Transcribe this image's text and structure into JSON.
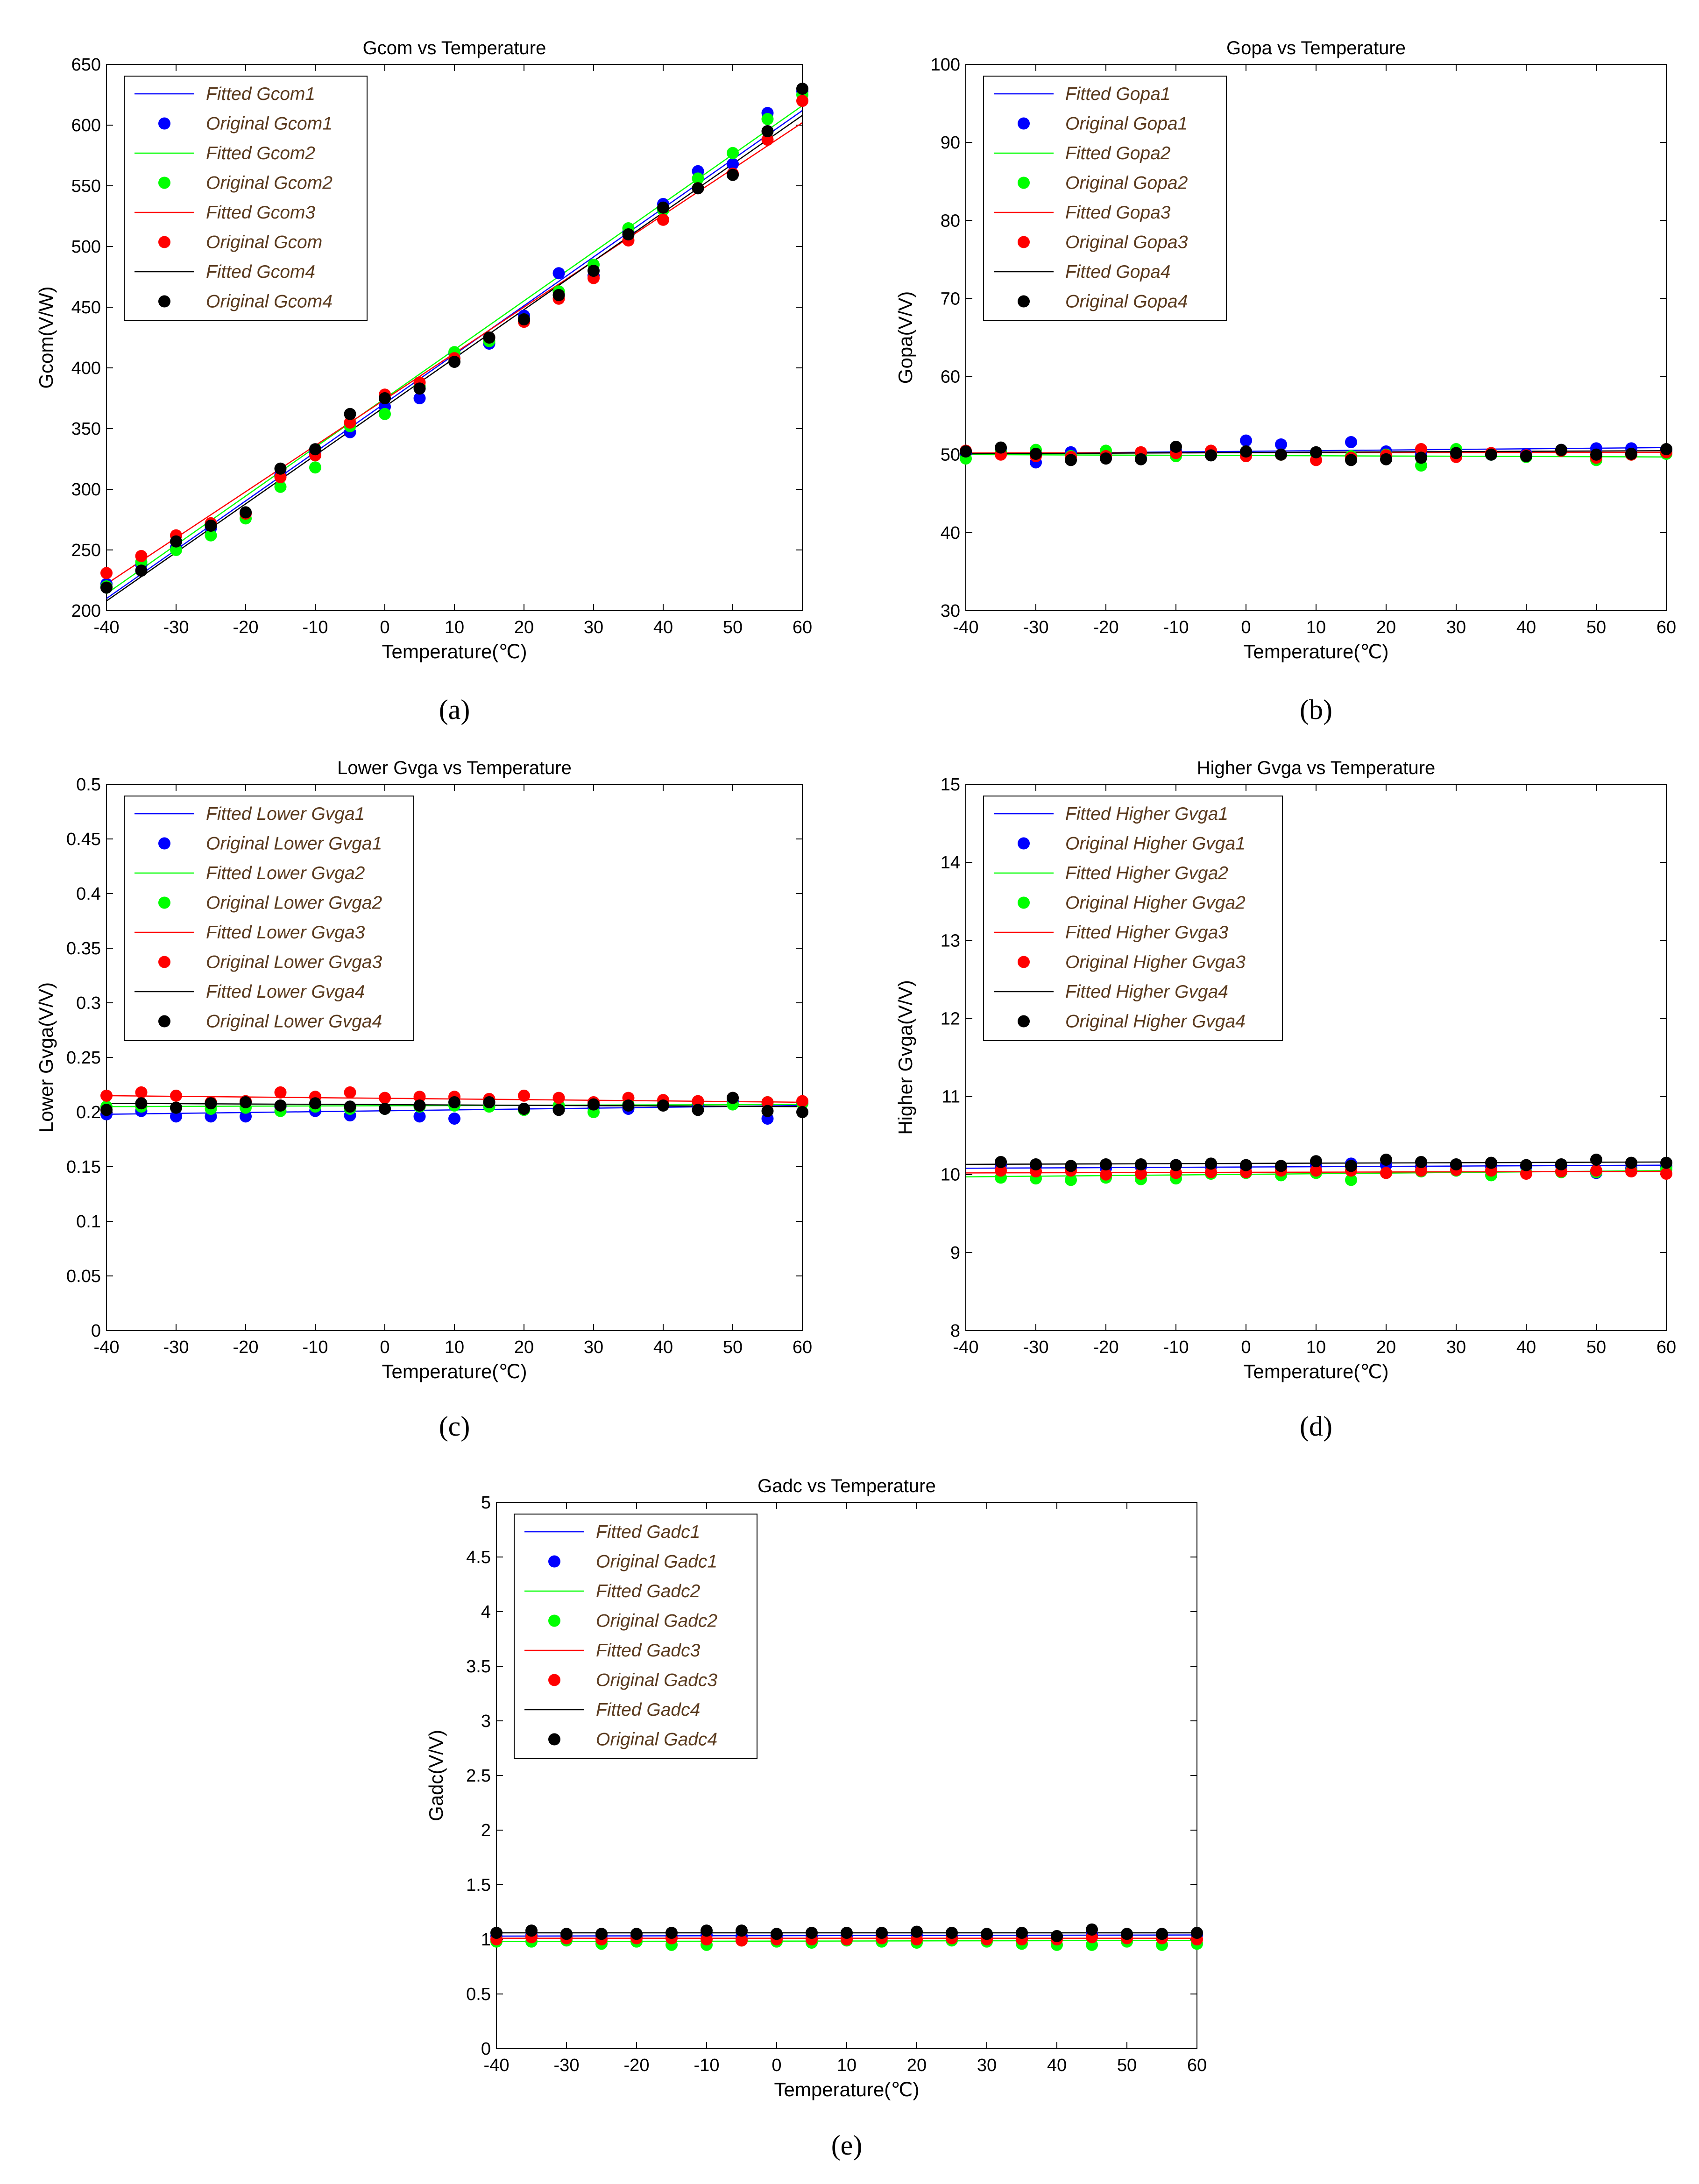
{
  "figure": {
    "colors": {
      "series1": "#0000ff",
      "series2": "#00ff00",
      "series3": "#ff0000",
      "series4": "#000000",
      "legend_text": "#5a3a1e"
    },
    "x": [
      -40,
      -35,
      -30,
      -25,
      -20,
      -15,
      -10,
      -5,
      0,
      5,
      10,
      15,
      20,
      25,
      30,
      35,
      40,
      45,
      50,
      55,
      60
    ]
  },
  "chart_data": [
    {
      "id": "a",
      "caption": "(a)",
      "type": "scatter",
      "title": "Gcom vs Temperature",
      "xlabel": "Temperature(℃)",
      "ylabel": "Gcom(V/W)",
      "xlim": [
        -40,
        60
      ],
      "ylim": [
        200,
        650
      ],
      "xticks": [
        -40,
        -30,
        -20,
        -10,
        0,
        10,
        20,
        30,
        40,
        50,
        60
      ],
      "yticks": [
        200,
        250,
        300,
        350,
        400,
        450,
        500,
        550,
        600,
        650
      ],
      "legend_position": "top-left",
      "legend": [
        "Fitted Gcom1",
        "Original Gcom1",
        "Fitted Gcom2",
        "Original Gcom2",
        "Fitted Gcom3",
        "Original Gcom",
        "Fitted Gcom4",
        "Original Gcom4"
      ],
      "series": [
        {
          "color": "#0000ff",
          "fit": [
            210,
            612
          ],
          "values": [
            222,
            238,
            252,
            268,
            280,
            312,
            330,
            347,
            368,
            375,
            412,
            420,
            443,
            478,
            476,
            512,
            535,
            562,
            568,
            610,
            628
          ]
        },
        {
          "color": "#00ff00",
          "fit": [
            214,
            616
          ],
          "values": [
            220,
            240,
            250,
            262,
            276,
            302,
            318,
            352,
            362,
            385,
            413,
            422,
            440,
            463,
            485,
            515,
            530,
            556,
            577,
            605,
            625
          ]
        },
        {
          "color": "#ff0000",
          "fit": [
            222,
            602
          ],
          "values": [
            231,
            245,
            262,
            272,
            280,
            310,
            328,
            355,
            378,
            388,
            408,
            425,
            438,
            457,
            474,
            505,
            522,
            548,
            560,
            588,
            620
          ]
        },
        {
          "color": "#000000",
          "fit": [
            208,
            608
          ],
          "values": [
            219,
            233,
            257,
            270,
            281,
            317,
            333,
            362,
            375,
            383,
            405,
            425,
            440,
            460,
            480,
            510,
            532,
            548,
            559,
            595,
            630
          ]
        }
      ]
    },
    {
      "id": "b",
      "caption": "(b)",
      "type": "scatter",
      "title": "Gopa vs Temperature",
      "xlabel": "Temperature(℃)",
      "ylabel": "Gopa(V/V)",
      "xlim": [
        -40,
        60
      ],
      "ylim": [
        30,
        100
      ],
      "xticks": [
        -40,
        -30,
        -20,
        -10,
        0,
        10,
        20,
        30,
        40,
        50,
        60
      ],
      "yticks": [
        30,
        40,
        50,
        60,
        70,
        80,
        90,
        100
      ],
      "legend_position": "top-left",
      "legend": [
        "Fitted Gopa1",
        "Original Gopa1",
        "Fitted Gopa2",
        "Original Gopa2",
        "Fitted Gopa3",
        "Original Gopa3",
        "Fitted Gopa4",
        "Original Gopa4"
      ],
      "series": [
        {
          "color": "#0000ff",
          "fit": [
            50.1,
            50.9
          ],
          "values": [
            50.2,
            50.8,
            49.0,
            50.3,
            50.0,
            49.6,
            50.5,
            50.2,
            51.8,
            51.3,
            50.2,
            51.6,
            50.4,
            50.0,
            50.2,
            50.0,
            50.1,
            50.6,
            50.8,
            50.8,
            50.6
          ]
        },
        {
          "color": "#00ff00",
          "fit": [
            50.0,
            49.7
          ],
          "values": [
            49.5,
            50.4,
            50.6,
            49.8,
            50.5,
            50.0,
            49.8,
            50.2,
            50.1,
            50.0,
            50.2,
            49.8,
            50.0,
            48.6,
            50.7,
            50.0,
            49.7,
            50.5,
            49.3,
            50.0,
            50.1
          ]
        },
        {
          "color": "#ff0000",
          "fit": [
            50.2,
            50.3
          ],
          "values": [
            50.5,
            50.0,
            49.8,
            49.7,
            49.8,
            50.3,
            50.2,
            50.5,
            49.8,
            50.0,
            49.3,
            49.6,
            49.9,
            50.7,
            49.7,
            50.2,
            49.9,
            50.5,
            49.6,
            50.0,
            50.3
          ]
        },
        {
          "color": "#000000",
          "fit": [
            50.1,
            50.5
          ],
          "values": [
            50.4,
            50.9,
            50.1,
            49.3,
            49.5,
            49.4,
            51.0,
            49.9,
            50.4,
            50.0,
            50.3,
            49.3,
            49.4,
            49.6,
            50.2,
            50.0,
            49.8,
            50.6,
            50.0,
            50.1,
            50.7
          ]
        }
      ]
    },
    {
      "id": "c",
      "caption": "(c)",
      "type": "scatter",
      "title": "Lower Gvga vs Temperature",
      "xlabel": "Temperature(℃)",
      "ylabel": "Lower Gvga(V/V)",
      "xlim": [
        -40,
        60
      ],
      "ylim": [
        0,
        0.5
      ],
      "xticks": [
        -40,
        -30,
        -20,
        -10,
        0,
        10,
        20,
        30,
        40,
        50,
        60
      ],
      "yticks": [
        0,
        0.05,
        0.1,
        0.15,
        0.2,
        0.25,
        0.3,
        0.35,
        0.4,
        0.45,
        0.5
      ],
      "legend_position": "top-left",
      "legend": [
        "Fitted Lower Gvga1",
        "Original Lower Gvga1",
        "Fitted Lower Gvga2",
        "Original Lower Gvga2",
        "Fitted Lower Gvga3",
        "Original Lower Gvga3",
        "Fitted Lower Gvga4",
        "Original Lower Gvga4"
      ],
      "series": [
        {
          "color": "#0000ff",
          "fit": [
            0.198,
            0.206
          ],
          "values": [
            0.198,
            0.201,
            0.196,
            0.196,
            0.196,
            0.205,
            0.201,
            0.197,
            0.203,
            0.196,
            0.194,
            0.209,
            0.203,
            0.203,
            0.204,
            0.203,
            0.208,
            0.207,
            0.21,
            0.194,
            0.208
          ]
        },
        {
          "color": "#00ff00",
          "fit": [
            0.205,
            0.207
          ],
          "values": [
            0.205,
            0.205,
            0.204,
            0.203,
            0.204,
            0.201,
            0.205,
            0.203,
            0.203,
            0.205,
            0.206,
            0.205,
            0.202,
            0.206,
            0.2,
            0.207,
            0.208,
            0.209,
            0.207,
            0.209,
            0.208
          ]
        },
        {
          "color": "#ff0000",
          "fit": [
            0.215,
            0.209
          ],
          "values": [
            0.215,
            0.218,
            0.215,
            0.209,
            0.21,
            0.218,
            0.214,
            0.218,
            0.213,
            0.214,
            0.214,
            0.212,
            0.215,
            0.213,
            0.209,
            0.213,
            0.211,
            0.21,
            0.213,
            0.209,
            0.21
          ]
        },
        {
          "color": "#000000",
          "fit": [
            0.208,
            0.205
          ],
          "values": [
            0.202,
            0.208,
            0.204,
            0.208,
            0.209,
            0.206,
            0.208,
            0.205,
            0.203,
            0.206,
            0.209,
            0.209,
            0.203,
            0.202,
            0.207,
            0.206,
            0.206,
            0.202,
            0.213,
            0.201,
            0.2
          ]
        }
      ]
    },
    {
      "id": "d",
      "caption": "(d)",
      "type": "scatter",
      "title": "Higher Gvga vs Temperature",
      "xlabel": "Temperature(℃)",
      "ylabel": "Higher Gvga(V/V)",
      "xlim": [
        -40,
        60
      ],
      "ylim": [
        8,
        15
      ],
      "xticks": [
        -40,
        -30,
        -20,
        -10,
        0,
        10,
        20,
        30,
        40,
        50,
        60
      ],
      "yticks": [
        8,
        9,
        10,
        11,
        12,
        13,
        14,
        15
      ],
      "legend_position": "top-left",
      "legend": [
        "Fitted Higher Gvga1",
        "Original Higher Gvga1",
        "Fitted Higher Gvga2",
        "Original Higher Gvga2",
        "Fitted Higher Gvga3",
        "Original Higher Gvga3",
        "Fitted Higher Gvga4",
        "Original Higher Gvga4"
      ],
      "series": [
        {
          "color": "#0000ff",
          "fit": [
            10.08,
            10.12
          ],
          "values": [
            null,
            10.12,
            10.1,
            10.09,
            10.08,
            10.1,
            10.12,
            10.1,
            10.1,
            10.08,
            10.12,
            10.14,
            10.12,
            10.1,
            10.11,
            10.1,
            10.1,
            10.11,
            10.02,
            10.08,
            10.1
          ]
        },
        {
          "color": "#00ff00",
          "fit": [
            9.97,
            10.05
          ],
          "values": [
            null,
            9.96,
            9.95,
            9.93,
            9.96,
            9.94,
            9.95,
            10.01,
            10.02,
            9.99,
            10.02,
            9.93,
            10.02,
            10.04,
            10.05,
            9.99,
            10.02,
            10.03,
            10.03,
            10.05,
            10.07
          ]
        },
        {
          "color": "#ff0000",
          "fit": [
            10.02,
            10.04
          ],
          "values": [
            null,
            10.05,
            10.04,
            10.05,
            10.0,
            10.01,
            10.02,
            10.03,
            10.03,
            10.05,
            10.05,
            10.05,
            10.02,
            10.05,
            10.06,
            10.05,
            10.01,
            10.04,
            10.05,
            10.04,
            10.01
          ]
        },
        {
          "color": "#000000",
          "fit": [
            10.13,
            10.16
          ],
          "values": [
            null,
            10.16,
            10.13,
            10.11,
            10.13,
            10.13,
            10.12,
            10.14,
            10.12,
            10.11,
            10.17,
            10.11,
            10.19,
            10.16,
            10.13,
            10.15,
            10.12,
            10.13,
            10.19,
            10.15,
            10.15
          ]
        }
      ]
    },
    {
      "id": "e",
      "caption": "(e)",
      "type": "scatter",
      "title": "Gadc vs Temperature",
      "xlabel": "Temperature(℃)",
      "ylabel": "Gadc(V/V)",
      "xlim": [
        -40,
        60
      ],
      "ylim": [
        0,
        5
      ],
      "xticks": [
        -40,
        -30,
        -20,
        -10,
        0,
        10,
        20,
        30,
        40,
        50,
        60
      ],
      "yticks": [
        0,
        0.5,
        1,
        1.5,
        2,
        2.5,
        3,
        3.5,
        4,
        4.5,
        5
      ],
      "legend_position": "top-left",
      "legend": [
        "Fitted Gadc1",
        "Original Gadc1",
        "Fitted Gadc2",
        "Original Gadc2",
        "Fitted Gadc3",
        "Original Gadc3",
        "Fitted Gadc4",
        "Original Gadc4"
      ],
      "series": [
        {
          "color": "#0000ff",
          "fit": [
            1.03,
            1.04
          ],
          "values": [
            1.03,
            1.04,
            1.02,
            1.03,
            1.02,
            1.03,
            1.04,
            1.03,
            1.02,
            1.03,
            1.03,
            1.04,
            1.04,
            1.03,
            1.02,
            1.03,
            1.02,
            1.05,
            1.03,
            1.03,
            1.04
          ]
        },
        {
          "color": "#00ff00",
          "fit": [
            0.98,
            0.99
          ],
          "values": [
            0.98,
            0.98,
            0.99,
            0.96,
            0.98,
            0.95,
            0.95,
            0.99,
            0.98,
            0.97,
            0.99,
            0.98,
            0.97,
            0.99,
            0.98,
            0.96,
            0.95,
            0.95,
            0.98,
            0.95,
            0.96
          ]
        },
        {
          "color": "#ff0000",
          "fit": [
            1.01,
            1.01
          ],
          "values": [
            1.0,
            1.02,
            1.01,
            1.0,
            1.01,
            1.01,
            1.0,
            0.99,
            1.0,
            1.0,
            1.0,
            1.01,
            1.0,
            1.01,
            1.0,
            1.0,
            1.0,
            1.02,
            1.01,
            1.01,
            1.0
          ]
        },
        {
          "color": "#000000",
          "fit": [
            1.06,
            1.06
          ],
          "values": [
            1.06,
            1.08,
            1.05,
            1.05,
            1.05,
            1.06,
            1.08,
            1.08,
            1.05,
            1.06,
            1.06,
            1.06,
            1.07,
            1.06,
            1.05,
            1.06,
            1.03,
            1.09,
            1.05,
            1.05,
            1.06
          ]
        }
      ]
    }
  ]
}
